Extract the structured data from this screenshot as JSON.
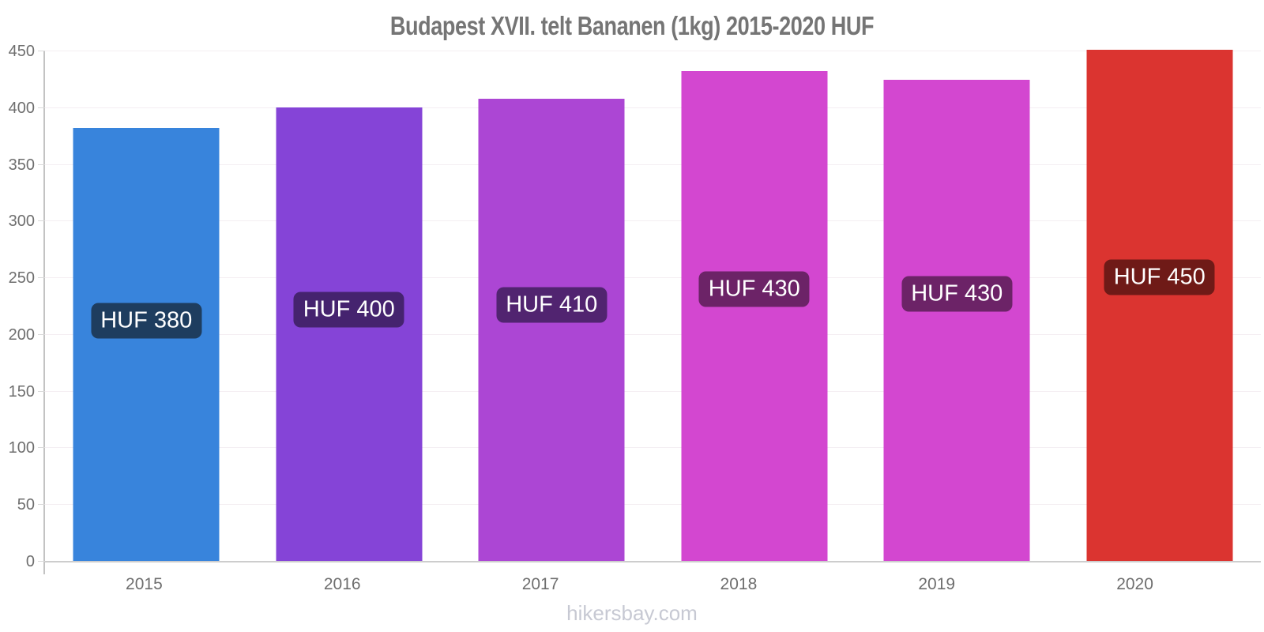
{
  "title": "Budapest XVII. telt Bananen (1kg) 2015-2020 HUF",
  "footer": "hikersbay.com",
  "chart_data": {
    "type": "bar",
    "title": "Budapest XVII. telt Bananen (1kg) 2015-2020 HUF",
    "categories": [
      "2015",
      "2016",
      "2017",
      "2018",
      "2019",
      "2020"
    ],
    "values": [
      380,
      400,
      410,
      430,
      430,
      450
    ],
    "bar_labels": [
      "HUF 380",
      "HUF 400",
      "HUF 410",
      "HUF 430",
      "HUF 430",
      "HUF 450"
    ],
    "drawn_values": [
      382.5,
      400.5,
      408,
      432.5,
      425,
      451.5
    ],
    "unit": "HUF",
    "xlabel": "",
    "ylabel": "",
    "ylim": [
      0,
      450
    ],
    "yticks": [
      0,
      50,
      100,
      150,
      200,
      250,
      300,
      350,
      400,
      450
    ],
    "grid": true,
    "legend_position": "none",
    "bar_colors": [
      "#3884DC",
      "#8544D7",
      "#AC46D4",
      "#D347D0",
      "#D347D0",
      "#DB3430"
    ],
    "label_bg_colors": [
      "#1E3D5F",
      "#45236F",
      "#512470",
      "#6C2367",
      "#6C2367",
      "#6F1A17"
    ],
    "label_text_color": "#FFFFFF"
  },
  "style": {
    "background": "#FFFFFF",
    "title_color": "#757575",
    "axis_label_color": "#6E6E6E",
    "grid_color": "#F4EEF2",
    "axis_line_color": "#C3C3C3",
    "baseline_color": "#CDCDCD",
    "footer_color": "#C7C9D3"
  }
}
